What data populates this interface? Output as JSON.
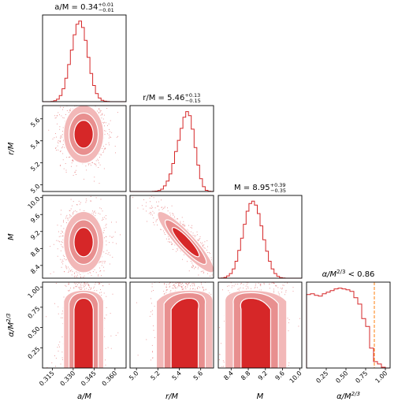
{
  "chart_data": {
    "type": "corner",
    "colors": {
      "hist": "#d62728",
      "scatter": "#d62728",
      "contour_outer": "#f2b8b8",
      "contour_mid": "#e88f8f",
      "contour_inner": "#d62728",
      "contour_edge": "#ffffff",
      "bound_line": "#ff7f0e"
    },
    "parameters": [
      {
        "label": "a/M",
        "title": "a/M = 0.34",
        "title_sup": "+0.01",
        "title_sub": "−0.01",
        "range": [
          0.308,
          0.368
        ],
        "ticks": [
          0.315,
          0.33,
          0.345,
          0.36
        ],
        "tick_labels": [
          "0.315",
          "0.330",
          "0.345",
          "0.360"
        ],
        "median": 0.3375,
        "sigma": 0.006
      },
      {
        "label": "r/M",
        "title": "r/M = 5.46",
        "title_sup": "+0.13",
        "title_sub": "−0.15",
        "range": [
          4.94,
          5.72
        ],
        "ticks": [
          5.0,
          5.2,
          5.4,
          5.6
        ],
        "tick_labels": [
          "5.0",
          "5.2",
          "5.4",
          "5.6"
        ],
        "median": 5.46,
        "sigma": 0.11
      },
      {
        "label": "M",
        "title": "M = 8.95",
        "title_sup": "+0.39",
        "title_sub": "−0.35",
        "range": [
          8.1,
          10.05
        ],
        "ticks": [
          8.4,
          8.8,
          9.2,
          9.6,
          10.0
        ],
        "tick_labels": [
          "8.4",
          "8.8",
          "9.2",
          "9.6",
          "10.0"
        ],
        "median": 8.95,
        "sigma": 0.3
      },
      {
        "label": "α/M^{2/3}",
        "label_base": "α/M",
        "label_sup": "2/3",
        "title": "α/M^{2/3} < 0.86",
        "title_base": "α/M",
        "title_sup": "2/3",
        "title_rest": " < 0.86",
        "range": [
          0.0,
          1.06
        ],
        "ticks": [
          0.25,
          0.5,
          0.75,
          1.0
        ],
        "tick_labels": [
          "0.25",
          "0.50",
          "0.75",
          "1.00"
        ],
        "upper_bound": 0.86
      }
    ],
    "histograms": [
      {
        "param": "a/M",
        "edges": [
          0.308,
          0.31,
          0.312,
          0.314,
          0.316,
          0.318,
          0.32,
          0.322,
          0.324,
          0.326,
          0.328,
          0.33,
          0.332,
          0.334,
          0.336,
          0.338,
          0.34,
          0.342,
          0.344,
          0.346,
          0.348,
          0.35,
          0.352,
          0.354,
          0.356,
          0.358,
          0.36,
          0.362,
          0.364,
          0.366,
          0.368
        ],
        "counts": [
          0,
          0,
          0,
          0.003,
          0.012,
          0.03,
          0.075,
          0.16,
          0.29,
          0.46,
          0.64,
          0.83,
          0.96,
          1.0,
          0.92,
          0.76,
          0.55,
          0.35,
          0.2,
          0.1,
          0.045,
          0.018,
          0.006,
          0.002,
          0,
          0,
          0,
          0,
          0,
          0
        ]
      },
      {
        "param": "r/M",
        "edges": [
          4.94,
          4.966,
          4.992,
          5.018,
          5.044,
          5.07,
          5.096,
          5.122,
          5.148,
          5.174,
          5.2,
          5.226,
          5.252,
          5.278,
          5.304,
          5.33,
          5.356,
          5.382,
          5.408,
          5.434,
          5.46,
          5.486,
          5.512,
          5.538,
          5.564,
          5.59,
          5.616,
          5.642,
          5.668,
          5.694,
          5.72
        ],
        "counts": [
          0,
          0,
          0,
          0,
          0,
          0,
          0,
          0,
          0.002,
          0.005,
          0.012,
          0.03,
          0.07,
          0.13,
          0.22,
          0.35,
          0.5,
          0.64,
          0.79,
          0.93,
          1.0,
          0.95,
          0.78,
          0.55,
          0.33,
          0.16,
          0.06,
          0.015,
          0.004,
          0.001
        ]
      },
      {
        "param": "M",
        "edges": [
          8.1,
          8.165,
          8.23,
          8.295,
          8.36,
          8.425,
          8.49,
          8.555,
          8.62,
          8.685,
          8.75,
          8.815,
          8.88,
          8.945,
          9.01,
          9.075,
          9.14,
          9.205,
          9.27,
          9.335,
          9.4,
          9.465,
          9.53,
          9.595,
          9.66,
          9.725,
          9.79,
          9.855,
          9.92,
          9.985,
          10.05
        ],
        "counts": [
          0,
          0.003,
          0.01,
          0.03,
          0.06,
          0.12,
          0.22,
          0.36,
          0.52,
          0.7,
          0.87,
          0.97,
          1.0,
          0.95,
          0.84,
          0.68,
          0.5,
          0.35,
          0.22,
          0.12,
          0.06,
          0.025,
          0.008,
          0.002,
          0,
          0,
          0,
          0,
          0,
          0
        ]
      },
      {
        "param": "α/M^{2/3}",
        "edges": [
          0.0,
          0.05,
          0.1,
          0.15,
          0.2,
          0.25,
          0.3,
          0.35,
          0.4,
          0.45,
          0.5,
          0.55,
          0.6,
          0.65,
          0.7,
          0.75,
          0.8,
          0.85,
          0.9,
          0.95,
          1.0,
          1.05
        ],
        "counts": [
          0.92,
          0.93,
          0.91,
          0.9,
          0.93,
          0.95,
          0.97,
          0.99,
          1.0,
          0.99,
          0.98,
          0.96,
          0.88,
          0.8,
          0.62,
          0.52,
          0.25,
          0.08,
          0.05,
          0.01,
          0.0
        ]
      }
    ],
    "joint": [
      {
        "x": "a/M",
        "y": "r/M",
        "corr": 0.0
      },
      {
        "x": "a/M",
        "y": "M",
        "corr": 0.0
      },
      {
        "x": "r/M",
        "y": "M",
        "corr": -0.9
      },
      {
        "x": "a/M",
        "y": "α/M^{2/3}",
        "corr": 0.0
      },
      {
        "x": "r/M",
        "y": "α/M^{2/3}",
        "corr": -0.2
      },
      {
        "x": "M",
        "y": "α/M^{2/3}",
        "corr": 0.2
      }
    ]
  }
}
